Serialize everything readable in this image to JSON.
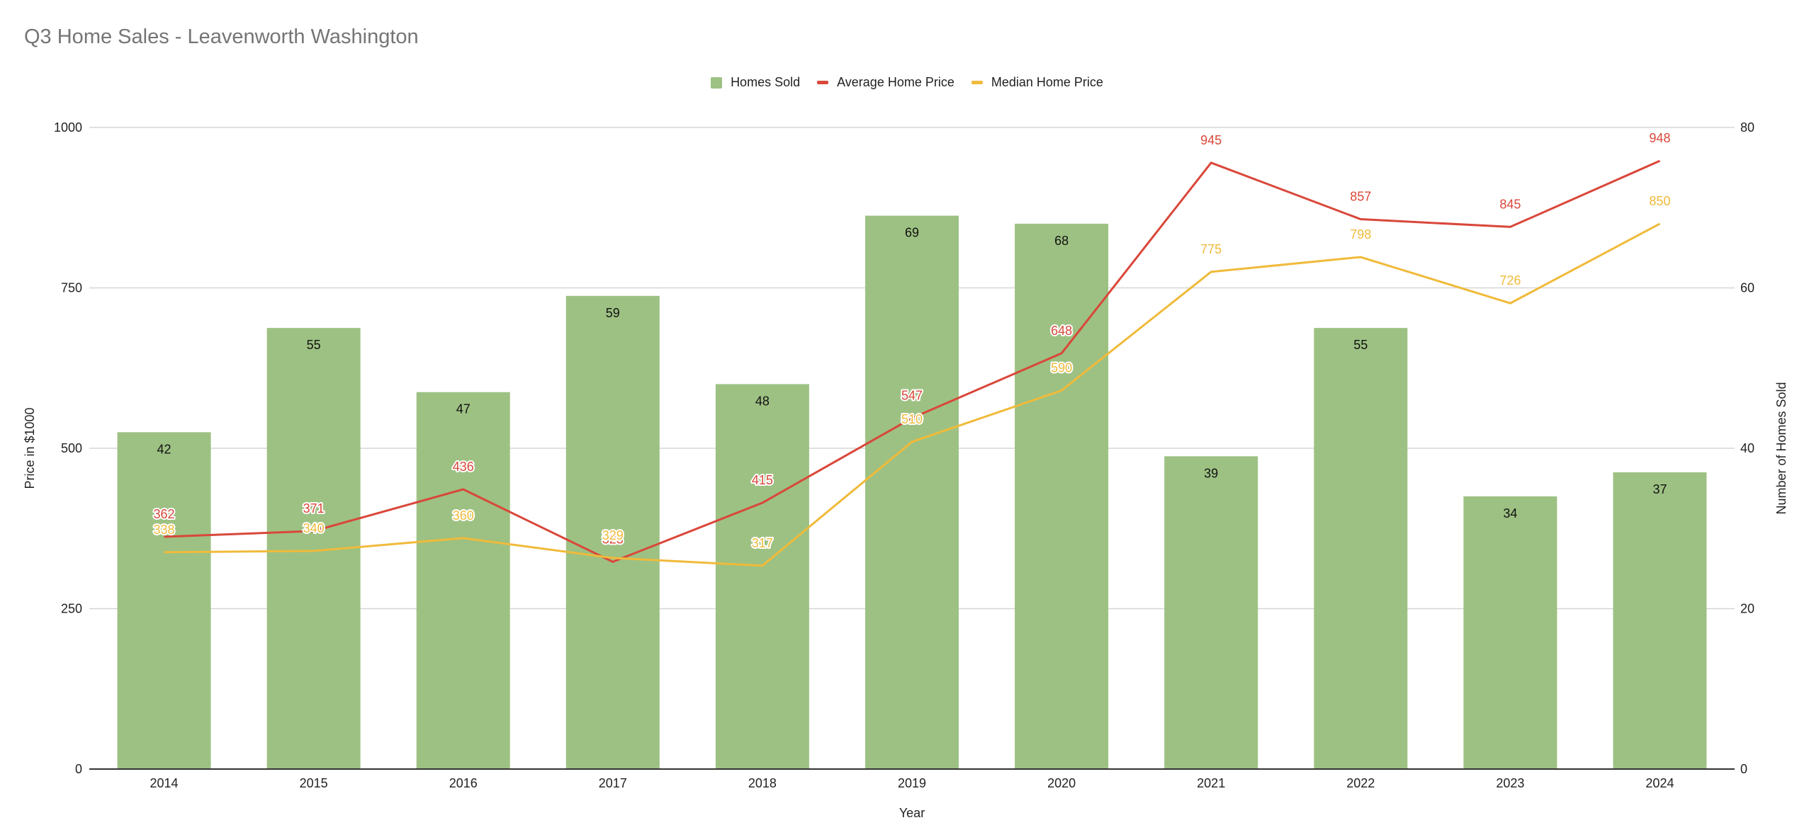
{
  "chart_data": {
    "type": "bar",
    "title": "Q3 Home Sales - Leavenworth Washington",
    "xlabel": "Year",
    "ylabel_left": "Price in $1000",
    "ylabel_right": "Number of Homes Sold",
    "categories": [
      "2014",
      "2015",
      "2016",
      "2017",
      "2018",
      "2019",
      "2020",
      "2021",
      "2022",
      "2023",
      "2024"
    ],
    "left_axis": {
      "min": 0,
      "max": 1000,
      "ticks": [
        0,
        250,
        500,
        750,
        1000
      ]
    },
    "right_axis": {
      "min": 0,
      "max": 80,
      "ticks": [
        0,
        20,
        40,
        60,
        80
      ]
    },
    "grid": true,
    "legend_position": "top-center",
    "series": [
      {
        "name": "Homes Sold",
        "kind": "bar",
        "axis": "right",
        "color": "#9dc183",
        "values": [
          42,
          55,
          47,
          59,
          48,
          69,
          68,
          39,
          55,
          34,
          37
        ]
      },
      {
        "name": "Average Home Price",
        "kind": "line",
        "axis": "left",
        "color": "#d9473a",
        "values": [
          362,
          371,
          436,
          323,
          415,
          547,
          648,
          945,
          857,
          845,
          948
        ]
      },
      {
        "name": "Median Home Price",
        "kind": "line",
        "axis": "left",
        "color": "#f0ba3a",
        "values": [
          338,
          340,
          360,
          329,
          317,
          510,
          590,
          775,
          798,
          726,
          850
        ]
      }
    ]
  }
}
